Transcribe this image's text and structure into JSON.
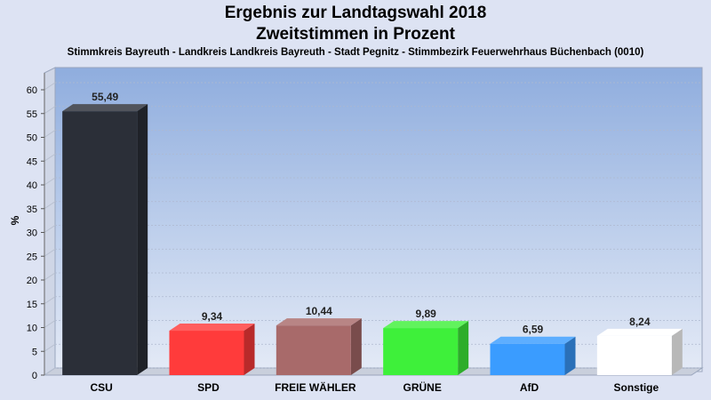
{
  "chart_data": {
    "type": "bar",
    "title": "Ergebnis zur Landtagswahl 2018",
    "subtitle": "Zweitstimmen in Prozent",
    "caption": "Stimmkreis Bayreuth - Landkreis Landkreis Bayreuth - Stadt Pegnitz - Stimmbezirk Feuerwehrhaus Büchenbach (0010)",
    "ylabel": "%",
    "xlabel": "",
    "ylim": [
      0,
      60
    ],
    "yticks": [
      0,
      5,
      10,
      15,
      20,
      25,
      30,
      35,
      40,
      45,
      50,
      55,
      60
    ],
    "grid": true,
    "categories": [
      "CSU",
      "SPD",
      "FREIE WÄHLER",
      "GRÜNE",
      "AfD",
      "Sonstige"
    ],
    "values": [
      55.49,
      9.34,
      10.44,
      9.89,
      6.59,
      8.24
    ],
    "value_labels": [
      "55,49",
      "9,34",
      "10,44",
      "9,89",
      "6,59",
      "8,24"
    ],
    "colors": [
      "#2b2f38",
      "#ff3b3b",
      "#a86a6a",
      "#3ef03a",
      "#3a9cff",
      "#ffffff"
    ]
  }
}
